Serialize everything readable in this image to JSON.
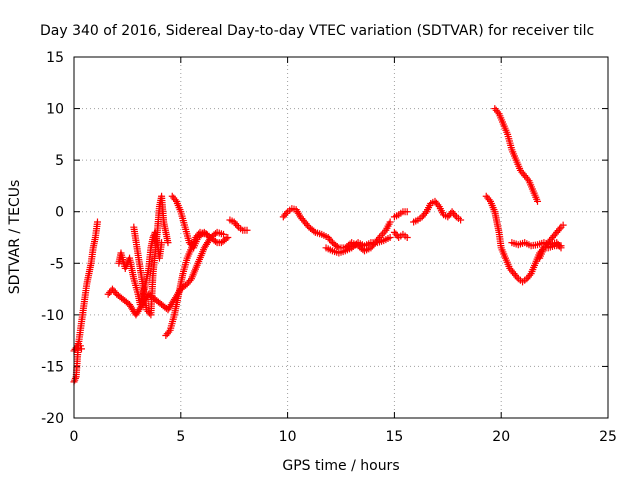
{
  "chart_data": {
    "type": "scatter",
    "title": "Day 340 of 2016, Sidereal Day-to-day VTEC variation (SDTVAR) for receiver tilc",
    "xlabel": "GPS time / hours",
    "ylabel": "SDTVAR / TECUs",
    "xlim": [
      0,
      25
    ],
    "ylim": [
      -20,
      15
    ],
    "xticks": [
      "0",
      "5",
      "10",
      "15",
      "20",
      "25"
    ],
    "yticks": [
      "-20",
      "-15",
      "-10",
      "-5",
      "0",
      "5",
      "10",
      "15"
    ],
    "grid": true,
    "legend": "none",
    "marker": "plus",
    "color": "#ff0000",
    "series": [
      {
        "values": [
          [
            0.0,
            -16.5
          ],
          [
            0.1,
            -16.0
          ],
          [
            0.15,
            -14.5
          ],
          [
            0.2,
            -13.0
          ],
          [
            0.3,
            -11.5
          ],
          [
            0.4,
            -10.0
          ],
          [
            0.5,
            -8.5
          ],
          [
            0.6,
            -7.0
          ],
          [
            0.7,
            -6.0
          ],
          [
            0.8,
            -5.0
          ],
          [
            0.9,
            -3.5
          ],
          [
            1.0,
            -2.5
          ],
          [
            1.1,
            -1.0
          ]
        ]
      },
      {
        "values": [
          [
            0.0,
            -13.5
          ],
          [
            0.1,
            -13.2
          ],
          [
            0.2,
            -12.8
          ],
          [
            0.3,
            -13.0
          ],
          [
            0.35,
            -13.3
          ]
        ]
      },
      {
        "values": [
          [
            1.6,
            -8.0
          ],
          [
            1.8,
            -7.5
          ],
          [
            2.0,
            -8.0
          ],
          [
            2.3,
            -8.5
          ],
          [
            2.6,
            -9.0
          ],
          [
            2.9,
            -10.0
          ],
          [
            3.2,
            -9.0
          ],
          [
            3.5,
            -8.0
          ],
          [
            3.8,
            -8.5
          ],
          [
            4.1,
            -9.0
          ],
          [
            4.4,
            -9.5
          ],
          [
            4.7,
            -8.5
          ],
          [
            5.0,
            -7.5
          ],
          [
            5.3,
            -7.0
          ],
          [
            5.5,
            -6.5
          ],
          [
            5.8,
            -5.0
          ],
          [
            6.1,
            -3.5
          ],
          [
            6.4,
            -2.5
          ],
          [
            6.7,
            -2.0
          ],
          [
            7.0,
            -2.2
          ]
        ]
      },
      {
        "values": [
          [
            2.1,
            -5.0
          ],
          [
            2.2,
            -4.0
          ],
          [
            2.4,
            -5.5
          ],
          [
            2.6,
            -4.5
          ],
          [
            2.8,
            -6.5
          ],
          [
            3.0,
            -8.0
          ],
          [
            3.1,
            -9.0
          ],
          [
            3.3,
            -7.5
          ],
          [
            3.5,
            -5.5
          ],
          [
            3.6,
            -3.5
          ],
          [
            3.7,
            -2.5
          ],
          [
            3.8,
            -2.0
          ],
          [
            3.9,
            -3.0
          ],
          [
            4.0,
            -4.5
          ],
          [
            4.1,
            -3.0
          ]
        ]
      },
      {
        "values": [
          [
            2.8,
            -1.5
          ],
          [
            3.4,
            -9.5
          ],
          [
            3.6,
            -10.0
          ],
          [
            3.7,
            -6.0
          ],
          [
            3.9,
            -2.0
          ],
          [
            4.0,
            0.5
          ],
          [
            4.1,
            1.5
          ],
          [
            4.2,
            -1.0
          ],
          [
            4.4,
            -3.0
          ]
        ]
      },
      {
        "values": [
          [
            4.3,
            -12.0
          ],
          [
            4.5,
            -11.5
          ],
          [
            4.7,
            -10.0
          ],
          [
            4.9,
            -8.0
          ],
          [
            5.1,
            -6.0
          ],
          [
            5.3,
            -4.5
          ],
          [
            5.5,
            -3.5
          ],
          [
            5.7,
            -2.5
          ],
          [
            5.9,
            -2.0
          ],
          [
            6.2,
            -2.2
          ]
        ]
      },
      {
        "values": [
          [
            4.6,
            1.5
          ],
          [
            4.8,
            1.0
          ],
          [
            5.0,
            0.0
          ],
          [
            5.2,
            -1.5
          ],
          [
            5.4,
            -3.0
          ],
          [
            5.6,
            -3.5
          ],
          [
            5.8,
            -2.5
          ],
          [
            6.1,
            -2.0
          ],
          [
            6.4,
            -2.5
          ],
          [
            6.7,
            -3.0
          ],
          [
            6.9,
            -3.0
          ],
          [
            7.2,
            -2.5
          ]
        ]
      },
      {
        "values": [
          [
            7.3,
            -0.8
          ],
          [
            7.5,
            -1.0
          ],
          [
            7.7,
            -1.5
          ],
          [
            7.9,
            -1.8
          ],
          [
            8.1,
            -1.8
          ]
        ]
      },
      {
        "values": [
          [
            9.8,
            -0.5
          ],
          [
            10.0,
            0.0
          ],
          [
            10.2,
            0.3
          ],
          [
            10.4,
            0.2
          ],
          [
            10.6,
            -0.5
          ],
          [
            10.8,
            -1.0
          ],
          [
            11.0,
            -1.5
          ],
          [
            11.3,
            -2.0
          ],
          [
            11.6,
            -2.2
          ],
          [
            11.9,
            -2.5
          ],
          [
            12.1,
            -3.0
          ],
          [
            12.4,
            -3.5
          ],
          [
            12.7,
            -3.5
          ],
          [
            13.0,
            -3.0
          ],
          [
            13.3,
            -3.3
          ],
          [
            13.6,
            -3.8
          ],
          [
            13.9,
            -3.5
          ],
          [
            14.1,
            -3.0
          ],
          [
            14.3,
            -2.5
          ],
          [
            14.6,
            -1.8
          ],
          [
            14.8,
            -1.0
          ]
        ]
      },
      {
        "values": [
          [
            11.8,
            -3.5
          ],
          [
            12.1,
            -3.8
          ],
          [
            12.4,
            -4.0
          ],
          [
            12.7,
            -3.8
          ],
          [
            13.0,
            -3.5
          ],
          [
            13.3,
            -3.0
          ],
          [
            13.6,
            -3.3
          ],
          [
            13.9,
            -3.0
          ],
          [
            14.2,
            -3.0
          ],
          [
            14.5,
            -2.8
          ],
          [
            14.8,
            -2.5
          ]
        ]
      },
      {
        "values": [
          [
            15.0,
            -0.5
          ],
          [
            15.2,
            -0.3
          ],
          [
            15.4,
            0.0
          ],
          [
            15.6,
            0.0
          ]
        ]
      },
      {
        "values": [
          [
            15.0,
            -2.0
          ],
          [
            15.2,
            -2.5
          ],
          [
            15.4,
            -2.2
          ],
          [
            15.6,
            -2.5
          ]
        ]
      },
      {
        "values": [
          [
            15.9,
            -1.0
          ],
          [
            16.1,
            -0.8
          ],
          [
            16.3,
            -0.5
          ],
          [
            16.5,
            0.0
          ],
          [
            16.7,
            0.8
          ],
          [
            16.9,
            1.0
          ],
          [
            17.1,
            0.5
          ],
          [
            17.3,
            -0.3
          ],
          [
            17.5,
            -0.5
          ],
          [
            17.7,
            0.0
          ],
          [
            17.9,
            -0.5
          ],
          [
            18.1,
            -0.8
          ]
        ]
      },
      {
        "values": [
          [
            19.3,
            1.5
          ],
          [
            19.5,
            1.0
          ],
          [
            19.7,
            0.0
          ],
          [
            19.9,
            -2.0
          ],
          [
            20.0,
            -3.5
          ],
          [
            20.2,
            -4.5
          ],
          [
            20.4,
            -5.5
          ],
          [
            20.6,
            -6.0
          ],
          [
            20.8,
            -6.5
          ],
          [
            21.0,
            -6.8
          ],
          [
            21.2,
            -6.5
          ],
          [
            21.4,
            -6.0
          ],
          [
            21.6,
            -5.0
          ],
          [
            21.8,
            -4.0
          ],
          [
            22.0,
            -3.5
          ],
          [
            22.2,
            -3.5
          ],
          [
            22.5,
            -3.3
          ],
          [
            22.8,
            -3.3
          ]
        ]
      },
      {
        "values": [
          [
            19.7,
            10.0
          ],
          [
            19.9,
            9.5
          ],
          [
            20.1,
            8.5
          ],
          [
            20.3,
            7.5
          ],
          [
            20.5,
            6.0
          ],
          [
            20.7,
            5.0
          ],
          [
            20.9,
            4.0
          ],
          [
            21.1,
            3.5
          ],
          [
            21.3,
            3.0
          ],
          [
            21.5,
            2.0
          ],
          [
            21.7,
            1.0
          ]
        ]
      },
      {
        "values": [
          [
            20.5,
            -3.0
          ],
          [
            20.8,
            -3.2
          ],
          [
            21.1,
            -3.0
          ],
          [
            21.4,
            -3.3
          ],
          [
            21.7,
            -3.2
          ],
          [
            22.0,
            -3.0
          ],
          [
            22.3,
            -3.2
          ],
          [
            22.6,
            -3.0
          ],
          [
            22.8,
            -3.5
          ]
        ]
      },
      {
        "values": [
          [
            21.8,
            -4.5
          ],
          [
            22.0,
            -3.5
          ],
          [
            22.2,
            -3.0
          ],
          [
            22.4,
            -2.5
          ],
          [
            22.6,
            -2.0
          ],
          [
            22.8,
            -1.5
          ],
          [
            22.9,
            -1.3
          ]
        ]
      }
    ]
  }
}
